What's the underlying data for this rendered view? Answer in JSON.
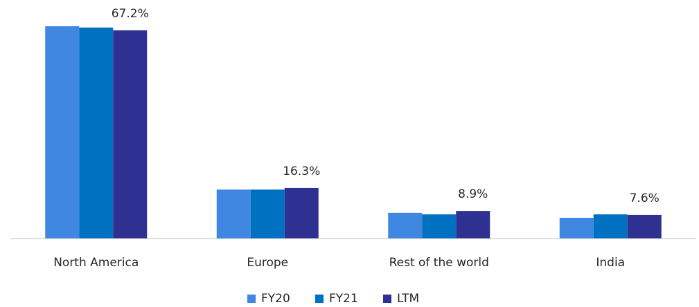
{
  "chart_data": {
    "type": "bar",
    "categories": [
      "North America",
      "Europe",
      "Rest of the world",
      "India"
    ],
    "series": [
      {
        "name": "FY20",
        "color": "#3f87e0",
        "values": [
          68.5,
          15.8,
          8.3,
          6.7
        ]
      },
      {
        "name": "FY21",
        "color": "#0070c0",
        "values": [
          68.1,
          15.8,
          7.8,
          7.8
        ]
      },
      {
        "name": "LTM",
        "color": "#2f3192",
        "values": [
          67.2,
          16.3,
          8.9,
          7.6
        ],
        "value_labels": [
          "67.2%",
          "16.3%",
          "8.9%",
          "7.6%"
        ]
      }
    ],
    "legend": "bottom"
  }
}
